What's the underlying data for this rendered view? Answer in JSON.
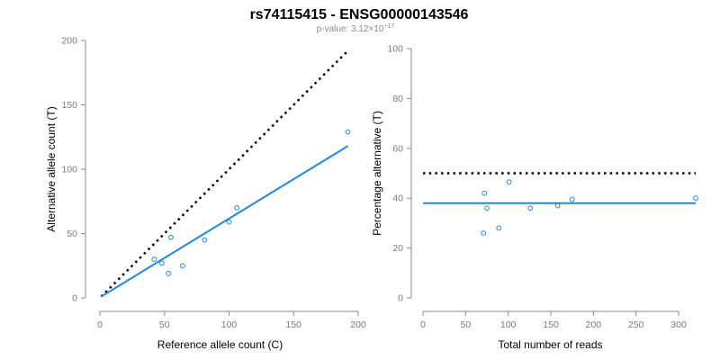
{
  "header": {
    "title": "rs74115415 - ENSG00000143546",
    "subtitle_prefix": "p-value: 3.12×10",
    "subtitle_exp": "−17"
  },
  "colors": {
    "series": "#1e88e5",
    "reference": "#000000",
    "axis": "#8a8a8a"
  },
  "chart_data": [
    {
      "type": "scatter",
      "xlabel": "Reference allele count (C)",
      "ylabel": "Alternative allele count (T)",
      "xlim": [
        0,
        200
      ],
      "ylim": [
        0,
        200
      ],
      "xticks": [
        0,
        50,
        100,
        150,
        200
      ],
      "yticks": [
        0,
        50,
        100,
        150,
        200
      ],
      "points": [
        {
          "x": 42,
          "y": 30
        },
        {
          "x": 48,
          "y": 27
        },
        {
          "x": 53,
          "y": 19
        },
        {
          "x": 55,
          "y": 47
        },
        {
          "x": 64,
          "y": 25
        },
        {
          "x": 81,
          "y": 45
        },
        {
          "x": 100,
          "y": 59
        },
        {
          "x": 106,
          "y": 70
        },
        {
          "x": 192,
          "y": 129
        }
      ],
      "fit_line": {
        "x": [
          1,
          192
        ],
        "y": [
          1,
          118
        ]
      },
      "reference_line": {
        "x": [
          1,
          192
        ],
        "y": [
          1,
          192
        ],
        "style": "dotted"
      }
    },
    {
      "type": "scatter",
      "xlabel": "Total number of reads",
      "ylabel": "Percentage alternative (T)",
      "xlim": [
        0,
        320
      ],
      "ylim": [
        0,
        100
      ],
      "xticks": [
        0,
        50,
        100,
        150,
        200,
        250,
        300
      ],
      "yticks": [
        0,
        20,
        40,
        60,
        80,
        100
      ],
      "points": [
        {
          "x": 71,
          "y": 26
        },
        {
          "x": 72,
          "y": 42
        },
        {
          "x": 75,
          "y": 36
        },
        {
          "x": 89,
          "y": 28
        },
        {
          "x": 101,
          "y": 46.5
        },
        {
          "x": 126,
          "y": 36
        },
        {
          "x": 158,
          "y": 37
        },
        {
          "x": 175,
          "y": 39.5
        },
        {
          "x": 320,
          "y": 40
        }
      ],
      "fit_line": {
        "x": [
          0,
          320
        ],
        "y": [
          38,
          38
        ]
      },
      "reference_line": {
        "x": [
          0,
          320
        ],
        "y": [
          50,
          50
        ],
        "style": "dotted"
      }
    }
  ]
}
